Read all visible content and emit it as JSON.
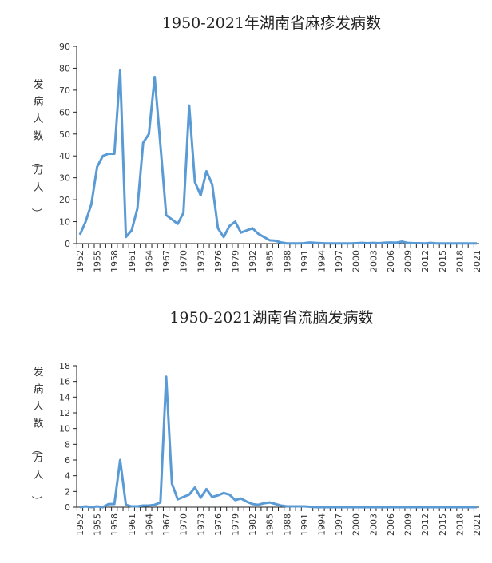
{
  "chart_data": [
    {
      "type": "line",
      "title": "1950-2021年湖南省麻疹发病数",
      "ylabel": "发病人数（万人）",
      "xlabel": "",
      "x_start": 1952,
      "x_end": 2021,
      "ylim": [
        0,
        90
      ],
      "ytick_step": 10,
      "color": "#5B9BD5",
      "values": [
        4,
        10,
        18,
        35,
        40,
        41,
        41,
        79,
        3,
        6,
        16,
        46,
        50,
        76,
        45,
        13,
        11,
        9,
        14,
        63,
        28,
        22,
        33,
        27,
        7,
        3,
        8,
        10,
        5,
        6,
        7,
        4.5,
        3,
        1.5,
        1.3,
        0.5,
        0.1,
        0.1,
        0.1,
        0.2,
        0.5,
        0.3,
        0.2,
        0.1,
        0.1,
        0.1,
        0.1,
        0.1,
        0.2,
        0.3,
        0.2,
        0.3,
        0.2,
        0.4,
        0.5,
        0.4,
        0.9,
        0.3,
        0.2,
        0.2,
        0.1,
        0.3,
        0.1,
        0.1,
        0.1,
        0.1,
        0.1,
        0.1,
        0.1,
        0.1
      ]
    },
    {
      "type": "line",
      "title": "1950-2021湖南省流脑发病数",
      "ylabel": "发病人数（万人）",
      "xlabel": "",
      "x_start": 1952,
      "x_end": 2021,
      "ylim": [
        0,
        18
      ],
      "ytick_step": 2,
      "color": "#5B9BD5",
      "values": [
        0,
        0.1,
        0,
        0.1,
        0,
        0.4,
        0.4,
        6,
        0.3,
        0.1,
        0.1,
        0.2,
        0.2,
        0.3,
        0.6,
        16.6,
        3,
        1,
        1.3,
        1.6,
        2.5,
        1.2,
        2.3,
        1.3,
        1.5,
        1.8,
        1.6,
        0.9,
        1.1,
        0.7,
        0.4,
        0.3,
        0.5,
        0.6,
        0.4,
        0.2,
        0.1,
        0.1,
        0.1,
        0.1,
        0.05,
        0,
        0,
        0,
        0,
        0,
        0,
        0,
        0,
        0,
        0,
        0,
        0,
        0,
        0,
        0,
        0,
        0,
        0,
        0,
        0,
        0,
        0,
        0,
        0,
        0,
        0,
        0,
        0,
        0
      ]
    }
  ]
}
